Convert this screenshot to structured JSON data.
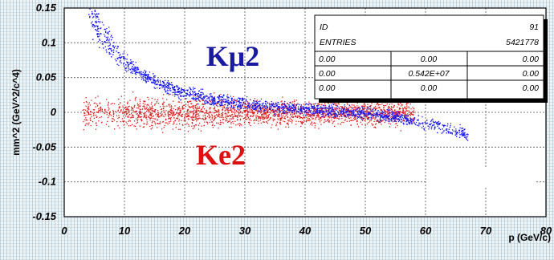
{
  "chart_data": {
    "type": "scatter",
    "title": "",
    "xlabel": "p (GeV/c)",
    "ylabel": "mm^2 (GeV^2/c^4)",
    "xlim": [
      0,
      80
    ],
    "ylim": [
      -0.15,
      0.15
    ],
    "x_ticks": [
      "0",
      "10",
      "20",
      "30",
      "40",
      "50",
      "60",
      "70",
      "80"
    ],
    "y_ticks": [
      "0.15",
      "0.1",
      "0.05",
      "0",
      "-0.05",
      "-0.1",
      "-0.15"
    ],
    "grid": true,
    "series": [
      {
        "name": "Kμ2",
        "color": "#1a1aee",
        "band": [
          {
            "x": 4,
            "y": 0.15
          },
          {
            "x": 5,
            "y": 0.132
          },
          {
            "x": 7,
            "y": 0.103
          },
          {
            "x": 10,
            "y": 0.072
          },
          {
            "x": 15,
            "y": 0.044
          },
          {
            "x": 20,
            "y": 0.028
          },
          {
            "x": 25,
            "y": 0.019
          },
          {
            "x": 30,
            "y": 0.012
          },
          {
            "x": 35,
            "y": 0.008
          },
          {
            "x": 40,
            "y": 0.005
          },
          {
            "x": 45,
            "y": 0.002
          },
          {
            "x": 50,
            "y": -0.001
          },
          {
            "x": 55,
            "y": -0.006
          },
          {
            "x": 60,
            "y": -0.015
          },
          {
            "x": 63,
            "y": -0.022
          },
          {
            "x": 67,
            "y": -0.033
          }
        ]
      },
      {
        "name": "Ke2",
        "color": "#e01818",
        "band": [
          {
            "x": 3,
            "y": 0.0
          },
          {
            "x": 10,
            "y": 0.0
          },
          {
            "x": 20,
            "y": 0.0
          },
          {
            "x": 30,
            "y": 0.0
          },
          {
            "x": 40,
            "y": 0.0
          },
          {
            "x": 50,
            "y": 0.0
          },
          {
            "x": 58,
            "y": 0.0
          }
        ]
      }
    ],
    "annotations": [
      {
        "text": "Kμ2",
        "x": 28,
        "y": 0.067,
        "color": "#1a1aa0"
      },
      {
        "text": "Ke2",
        "x": 26,
        "y": -0.075,
        "color": "#dd1111"
      }
    ],
    "stats_box": {
      "id_label": "ID",
      "id_value": "91",
      "entries_label": "ENTRIES",
      "entries_value": "5421778",
      "rows": [
        [
          "0.00",
          "0.00",
          "0.00"
        ],
        [
          "0.00",
          "0.542E+07",
          "0.00"
        ],
        [
          "0.00",
          "0.00",
          "0.00"
        ]
      ]
    }
  }
}
